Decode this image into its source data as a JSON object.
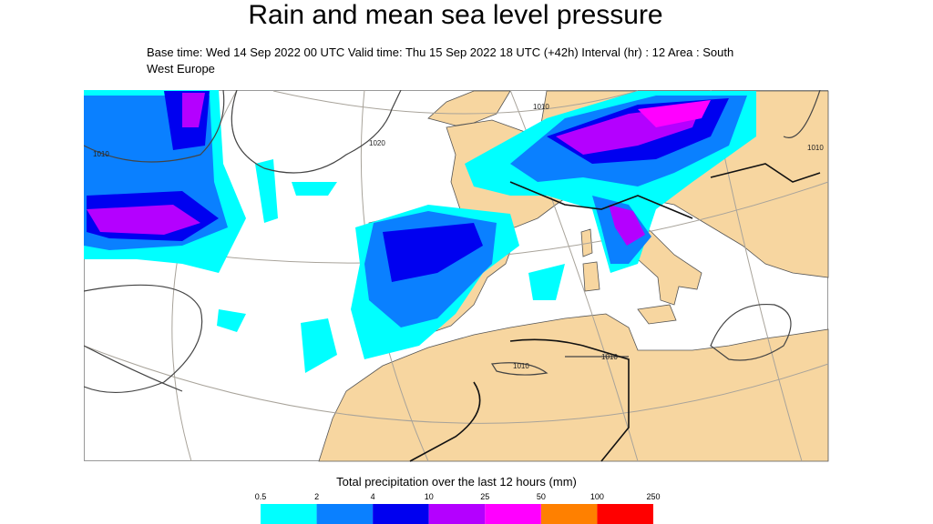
{
  "header": {
    "title": "Rain and mean sea level pressure",
    "subtitle": "Base time: Wed 14 Sep 2022 00 UTC Valid time: Thu 15 Sep 2022 18 UTC (+42h) Interval (hr) : 12 Area : South West Europe"
  },
  "map": {
    "isobar_labels": [
      "1010",
      "1020",
      "1010",
      "1010",
      "1010",
      "1010"
    ]
  },
  "legend": {
    "title": "Total precipitation over the last 12 hours (mm)",
    "ticks": [
      0.5,
      2,
      4,
      10,
      25,
      50,
      100,
      250
    ],
    "colors": [
      "#00ffff",
      "#0a80ff",
      "#0000f0",
      "#b400ff",
      "#ff00ff",
      "#ff8000",
      "#ff0000"
    ]
  }
}
